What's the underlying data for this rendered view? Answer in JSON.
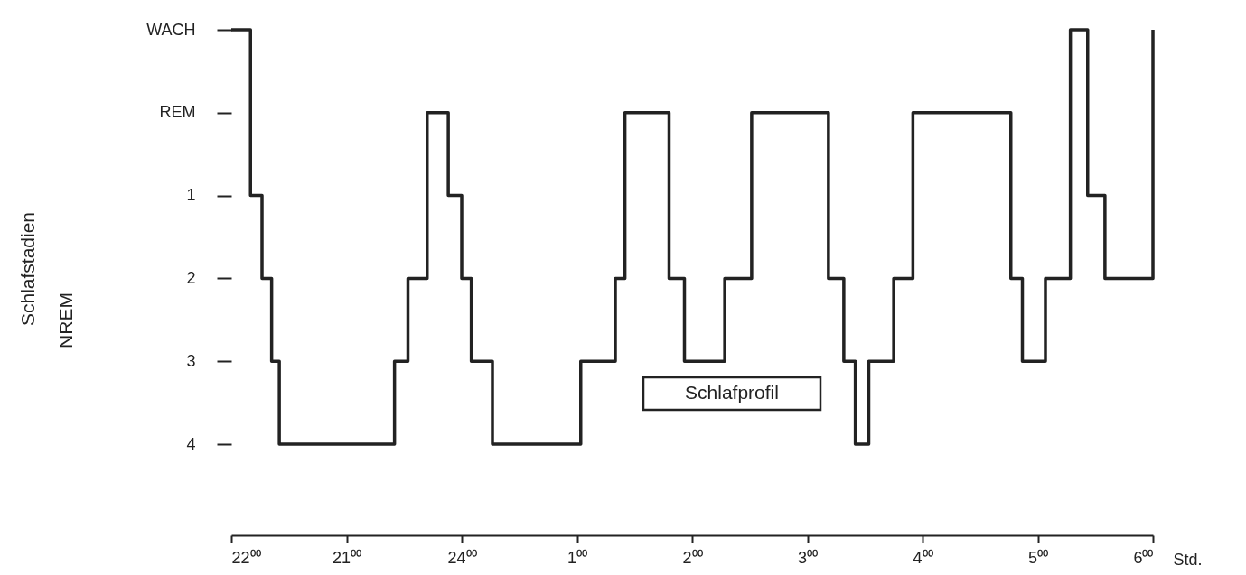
{
  "chart_data": {
    "type": "step",
    "xlabel": "Std.",
    "annotations": [
      "Schlafstadien",
      "NREM",
      "Schlafprofil"
    ],
    "x": [
      "--01-01T22:00",
      "--01-01T22:10",
      "--01-01T22:16",
      "--01-01T22:21",
      "--01-01T22:25",
      "--01-01T23:25",
      "--01-01T23:32",
      "--01-01T23:42",
      "--01-01T23:53",
      "--01-02T00:00",
      "--01-02T00:05",
      "--01-02T00:16",
      "--01-02T01:02",
      "--01-02T01:20",
      "--01-02T01:25",
      "--01-02T01:48",
      "--01-02T01:56",
      "--01-02T02:17",
      "--01-02T02:31",
      "--01-02T03:11",
      "--01-02T03:19",
      "--01-02T03:25",
      "--01-02T03:32",
      "--01-02T03:45",
      "--01-02T03:55",
      "--01-02T04:46",
      "--01-02T04:52",
      "--01-02T05:04",
      "--01-02T05:17",
      "--01-02T05:26",
      "--01-02T05:35",
      "--01-02T06:00"
    ],
    "series": [
      {
        "color": "#222222",
        "values": [
          -1,
          1,
          2,
          3,
          4,
          3,
          2,
          0,
          1,
          2,
          3,
          4,
          3,
          2,
          0,
          2,
          3,
          2,
          0,
          2,
          3,
          4,
          3,
          2,
          0,
          2,
          3,
          2,
          -1,
          1,
          2,
          -1
        ]
      }
    ],
    "xlim": [
      "--01-01T22:00",
      "--01-02T06:00"
    ],
    "xticks": [
      {
        "value": "--01-01T22:00",
        "label": "22⁰⁰"
      },
      {
        "value": "--01-01T23:00",
        "label": "21⁰⁰"
      },
      {
        "value": "--01-02T00:00",
        "label": "24⁰⁰"
      },
      {
        "value": "--01-02T01:00",
        "label": "1⁰⁰"
      },
      {
        "value": "--01-02T02:00",
        "label": "2⁰⁰"
      },
      {
        "value": "--01-02T03:00",
        "label": "3⁰⁰"
      },
      {
        "value": "--01-02T04:00",
        "label": "4⁰⁰"
      },
      {
        "value": "--01-02T05:00",
        "label": "5⁰⁰"
      },
      {
        "value": "--01-02T06:00",
        "label": "6⁰⁰"
      }
    ],
    "ylim": [
      5.1,
      -1
    ],
    "yticks": [
      {
        "value": -1,
        "label": "WACH"
      },
      {
        "value": 0,
        "label": "REM"
      },
      1,
      2,
      3,
      4
    ],
    "grid": false,
    "line_style": "solid",
    "marker": "none"
  }
}
